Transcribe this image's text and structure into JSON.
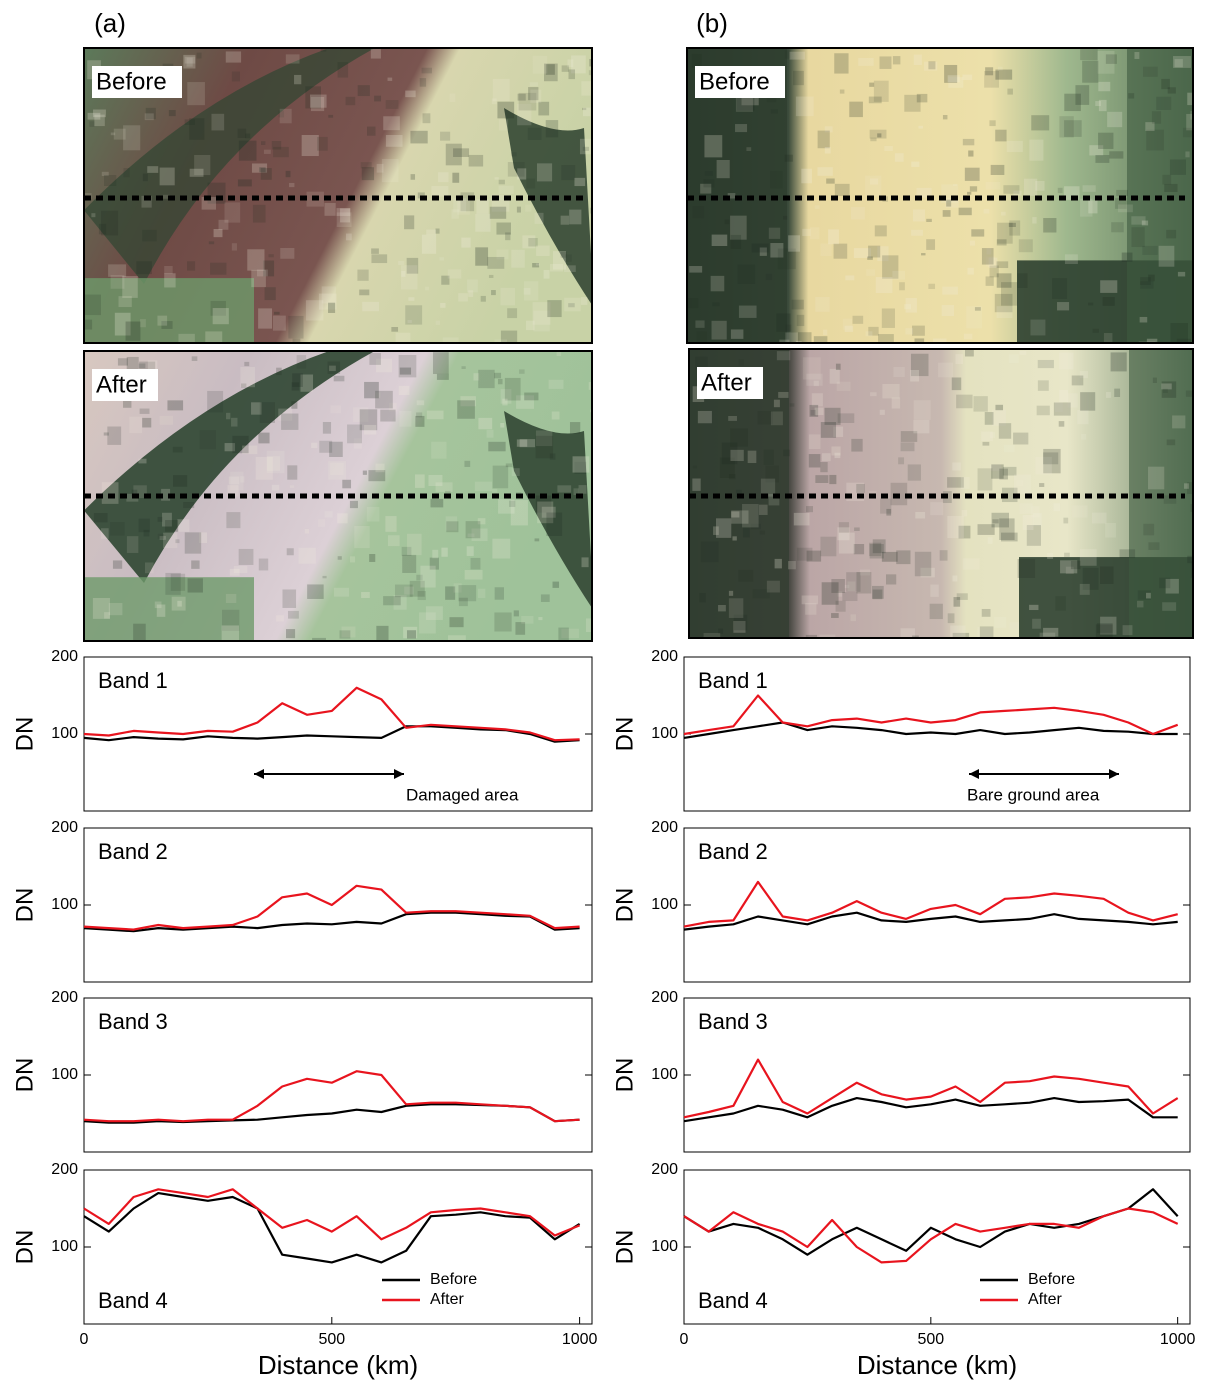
{
  "panels": [
    {
      "label": "(a)",
      "images": [
        "Before",
        "After"
      ]
    },
    {
      "label": "(b)",
      "images": [
        "Before",
        "After"
      ]
    }
  ],
  "chart_data": [
    {
      "type": "line",
      "title": "Band 1",
      "ylabel": "DN",
      "annotation": "Damaged area",
      "x": [
        0,
        50,
        100,
        150,
        200,
        250,
        300,
        350,
        400,
        450,
        500,
        550,
        600,
        650,
        700,
        750,
        800,
        850,
        900,
        950,
        1000
      ],
      "xlim": [
        0,
        1025
      ],
      "ylim": [
        0,
        200
      ],
      "yticks": [
        100,
        200
      ],
      "series": [
        {
          "color": "#000000",
          "values": [
            95,
            92,
            96,
            94,
            93,
            97,
            95,
            94,
            96,
            98,
            97,
            96,
            95,
            110,
            110,
            108,
            106,
            105,
            100,
            90,
            92
          ]
        },
        {
          "color": "#e8141e",
          "values": [
            100,
            98,
            104,
            102,
            100,
            104,
            103,
            115,
            140,
            125,
            130,
            160,
            145,
            108,
            112,
            110,
            108,
            106,
            102,
            92,
            93
          ]
        }
      ]
    },
    {
      "type": "line",
      "title": "Band 2",
      "ylabel": "DN",
      "x": [
        0,
        50,
        100,
        150,
        200,
        250,
        300,
        350,
        400,
        450,
        500,
        550,
        600,
        650,
        700,
        750,
        800,
        850,
        900,
        950,
        1000
      ],
      "xlim": [
        0,
        1025
      ],
      "ylim": [
        0,
        200
      ],
      "yticks": [
        100,
        200
      ],
      "series": [
        {
          "color": "#000000",
          "values": [
            70,
            68,
            66,
            70,
            68,
            70,
            72,
            70,
            74,
            76,
            75,
            78,
            76,
            88,
            90,
            90,
            88,
            86,
            85,
            68,
            70
          ]
        },
        {
          "color": "#e8141e",
          "values": [
            72,
            70,
            68,
            74,
            70,
            72,
            74,
            85,
            110,
            115,
            100,
            125,
            120,
            90,
            92,
            92,
            90,
            88,
            86,
            70,
            72
          ]
        }
      ]
    },
    {
      "type": "line",
      "title": "Band 3",
      "ylabel": "DN",
      "x": [
        0,
        50,
        100,
        150,
        200,
        250,
        300,
        350,
        400,
        450,
        500,
        550,
        600,
        650,
        700,
        750,
        800,
        850,
        900,
        950,
        1000
      ],
      "xlim": [
        0,
        1025
      ],
      "ylim": [
        0,
        200
      ],
      "yticks": [
        100,
        200
      ],
      "series": [
        {
          "color": "#000000",
          "values": [
            40,
            38,
            38,
            40,
            39,
            40,
            41,
            42,
            45,
            48,
            50,
            55,
            52,
            60,
            62,
            62,
            61,
            60,
            58,
            40,
            42
          ]
        },
        {
          "color": "#e8141e",
          "values": [
            42,
            40,
            40,
            42,
            40,
            42,
            42,
            60,
            85,
            95,
            90,
            105,
            100,
            62,
            64,
            64,
            62,
            60,
            58,
            40,
            42
          ]
        }
      ]
    },
    {
      "type": "line",
      "title": "Band 4",
      "ylabel": "DN",
      "xlabel": "Distance (km)",
      "legend": "lower right",
      "x": [
        0,
        50,
        100,
        150,
        200,
        250,
        300,
        350,
        400,
        450,
        500,
        550,
        600,
        650,
        700,
        750,
        800,
        850,
        900,
        950,
        1000
      ],
      "xlim": [
        0,
        1025
      ],
      "xticks": [
        0,
        500,
        1000
      ],
      "ylim": [
        0,
        200
      ],
      "yticks": [
        100,
        200
      ],
      "series": [
        {
          "name": "Before",
          "color": "#000000",
          "values": [
            140,
            120,
            150,
            170,
            165,
            160,
            165,
            150,
            90,
            85,
            80,
            90,
            80,
            95,
            140,
            142,
            145,
            140,
            138,
            110,
            130
          ]
        },
        {
          "name": "After",
          "color": "#e8141e",
          "values": [
            150,
            130,
            165,
            175,
            170,
            165,
            175,
            150,
            125,
            135,
            120,
            140,
            110,
            125,
            145,
            148,
            150,
            145,
            140,
            115,
            128
          ]
        }
      ]
    },
    {
      "type": "line",
      "title": "Band 1",
      "ylabel": "DN",
      "annotation": "Bare ground area",
      "x": [
        0,
        50,
        100,
        150,
        200,
        250,
        300,
        350,
        400,
        450,
        500,
        550,
        600,
        650,
        700,
        750,
        800,
        850,
        900,
        950,
        1000
      ],
      "xlim": [
        0,
        1025
      ],
      "ylim": [
        0,
        200
      ],
      "yticks": [
        100,
        200
      ],
      "series": [
        {
          "color": "#000000",
          "values": [
            95,
            100,
            105,
            110,
            115,
            105,
            110,
            108,
            105,
            100,
            102,
            100,
            105,
            100,
            102,
            105,
            108,
            104,
            103,
            100,
            100
          ]
        },
        {
          "color": "#e8141e",
          "values": [
            100,
            105,
            110,
            150,
            115,
            110,
            118,
            120,
            115,
            120,
            115,
            118,
            128,
            130,
            132,
            134,
            130,
            125,
            115,
            100,
            112
          ]
        }
      ]
    },
    {
      "type": "line",
      "title": "Band 2",
      "ylabel": "DN",
      "x": [
        0,
        50,
        100,
        150,
        200,
        250,
        300,
        350,
        400,
        450,
        500,
        550,
        600,
        650,
        700,
        750,
        800,
        850,
        900,
        950,
        1000
      ],
      "xlim": [
        0,
        1025
      ],
      "ylim": [
        0,
        200
      ],
      "yticks": [
        100,
        200
      ],
      "series": [
        {
          "color": "#000000",
          "values": [
            68,
            72,
            75,
            85,
            80,
            75,
            85,
            90,
            80,
            78,
            82,
            85,
            78,
            80,
            82,
            88,
            82,
            80,
            78,
            75,
            78
          ]
        },
        {
          "color": "#e8141e",
          "values": [
            72,
            78,
            80,
            130,
            85,
            80,
            90,
            105,
            90,
            82,
            95,
            100,
            88,
            108,
            110,
            115,
            112,
            108,
            90,
            80,
            88
          ]
        }
      ]
    },
    {
      "type": "line",
      "title": "Band 3",
      "ylabel": "DN",
      "x": [
        0,
        50,
        100,
        150,
        200,
        250,
        300,
        350,
        400,
        450,
        500,
        550,
        600,
        650,
        700,
        750,
        800,
        850,
        900,
        950,
        1000
      ],
      "xlim": [
        0,
        1025
      ],
      "ylim": [
        0,
        200
      ],
      "yticks": [
        100,
        200
      ],
      "series": [
        {
          "color": "#000000",
          "values": [
            40,
            45,
            50,
            60,
            55,
            45,
            60,
            70,
            65,
            58,
            62,
            68,
            60,
            62,
            64,
            70,
            65,
            66,
            68,
            45,
            45
          ]
        },
        {
          "color": "#e8141e",
          "values": [
            45,
            52,
            60,
            120,
            65,
            50,
            70,
            90,
            75,
            68,
            72,
            85,
            65,
            90,
            92,
            98,
            95,
            90,
            85,
            50,
            70
          ]
        }
      ]
    },
    {
      "type": "line",
      "title": "Band 4",
      "ylabel": "DN",
      "xlabel": "Distance (km)",
      "legend": "lower right",
      "x": [
        0,
        50,
        100,
        150,
        200,
        250,
        300,
        350,
        400,
        450,
        500,
        550,
        600,
        650,
        700,
        750,
        800,
        850,
        900,
        950,
        1000
      ],
      "xlim": [
        0,
        1025
      ],
      "xticks": [
        0,
        500,
        1000
      ],
      "ylim": [
        0,
        200
      ],
      "yticks": [
        100,
        200
      ],
      "series": [
        {
          "name": "Before",
          "color": "#000000",
          "values": [
            140,
            120,
            130,
            125,
            110,
            90,
            110,
            125,
            110,
            95,
            125,
            110,
            100,
            120,
            130,
            125,
            130,
            140,
            150,
            175,
            140
          ]
        },
        {
          "name": "After",
          "color": "#e8141e",
          "values": [
            140,
            120,
            145,
            130,
            120,
            100,
            135,
            100,
            80,
            82,
            110,
            130,
            120,
            125,
            130,
            130,
            125,
            140,
            150,
            145,
            130
          ]
        }
      ]
    }
  ]
}
